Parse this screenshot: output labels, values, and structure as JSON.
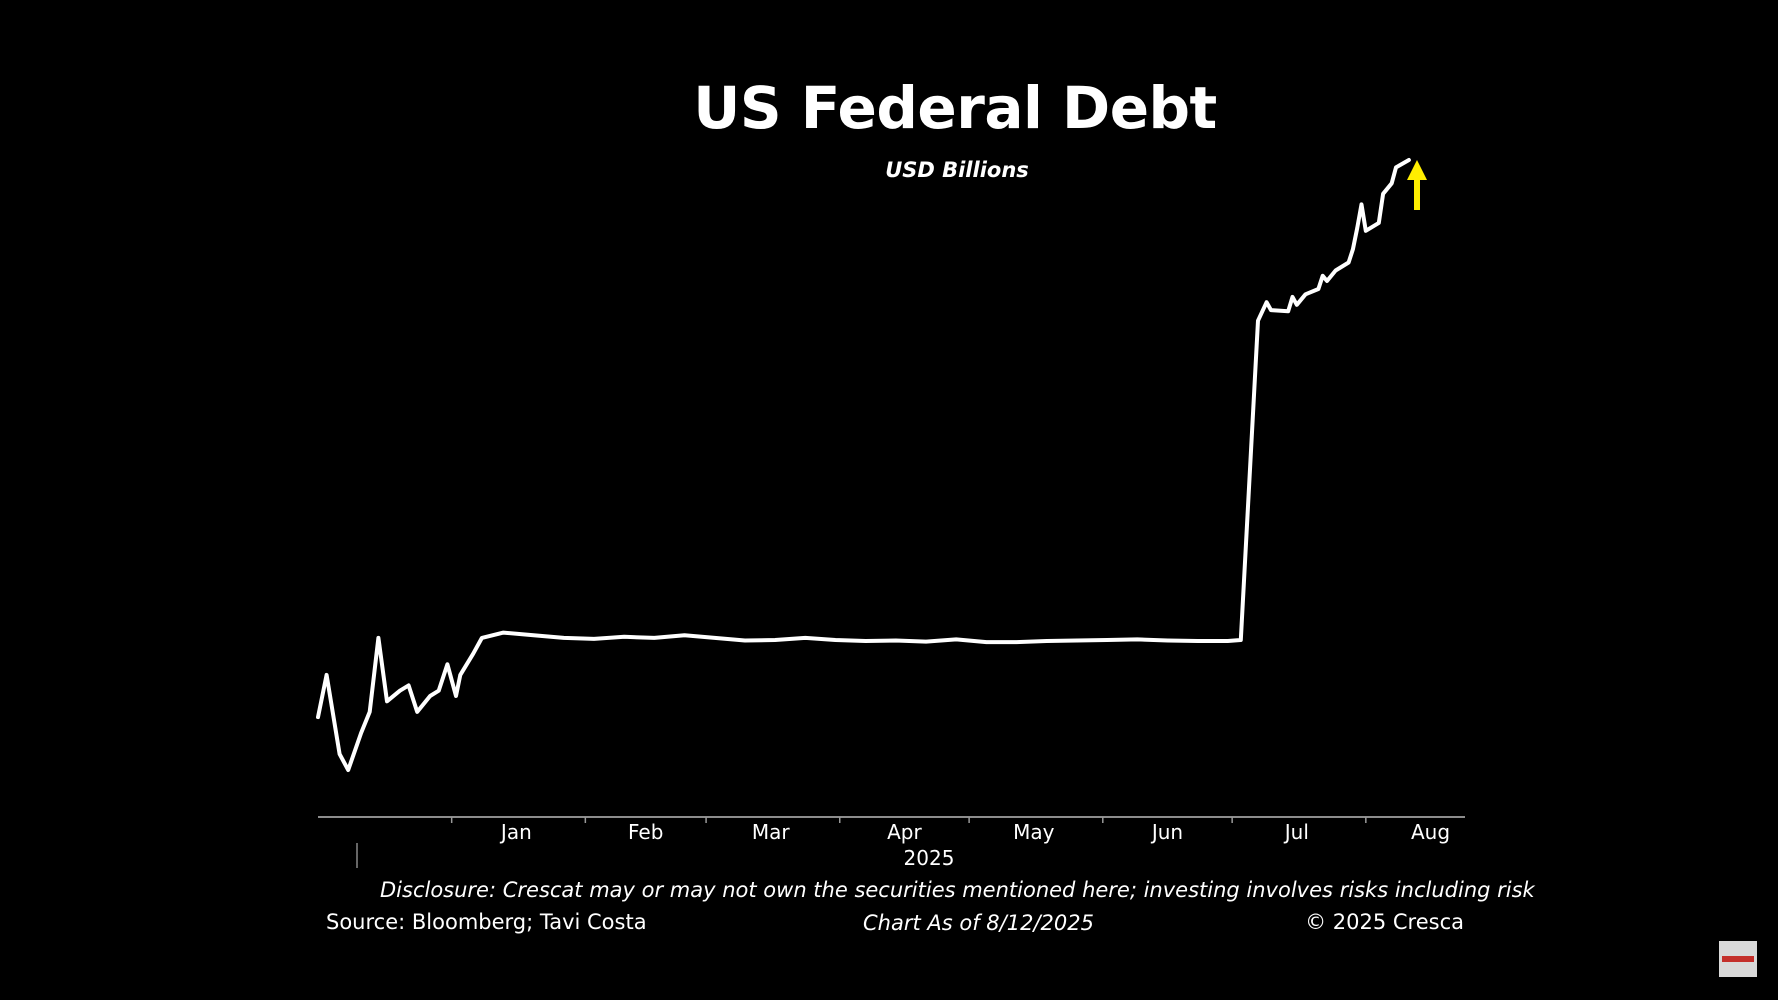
{
  "chart_data": {
    "type": "line",
    "title": "US Federal Debt",
    "subtitle": "USD Billions",
    "x_tick_labels": [
      "Jan",
      "Feb",
      "Mar",
      "Apr",
      "May",
      "Jun",
      "Jul",
      "Aug"
    ],
    "year_label": "2025",
    "xlim": [
      "2024-12-01",
      "2025-08-24"
    ],
    "grid": false,
    "line_color": "#ffffff",
    "arrow_color": "#ffee00",
    "series": [
      {
        "values_note": "",
        "points": [
          [
            "2024-12-01",
            36150
          ],
          [
            "2024-12-03",
            36230
          ],
          [
            "2024-12-06",
            36080
          ],
          [
            "2024-12-08",
            36050
          ],
          [
            "2024-12-11",
            36120
          ],
          [
            "2024-12-13",
            36160
          ],
          [
            "2024-12-15",
            36300
          ],
          [
            "2024-12-17",
            36180
          ],
          [
            "2024-12-20",
            36200
          ],
          [
            "2024-12-22",
            36210
          ],
          [
            "2024-12-24",
            36160
          ],
          [
            "2024-12-27",
            36190
          ],
          [
            "2024-12-29",
            36200
          ],
          [
            "2024-12-31",
            36250
          ],
          [
            "2025-01-02",
            36190
          ],
          [
            "2025-01-03",
            36230
          ],
          [
            "2025-01-06",
            36270
          ],
          [
            "2025-01-08",
            36300
          ],
          [
            "2025-01-13",
            36310
          ],
          [
            "2025-01-20",
            36305
          ],
          [
            "2025-01-27",
            36300
          ],
          [
            "2025-02-03",
            36298
          ],
          [
            "2025-02-10",
            36302
          ],
          [
            "2025-02-17",
            36300
          ],
          [
            "2025-02-24",
            36305
          ],
          [
            "2025-03-03",
            36300
          ],
          [
            "2025-03-10",
            36295
          ],
          [
            "2025-03-17",
            36296
          ],
          [
            "2025-03-24",
            36300
          ],
          [
            "2025-03-31",
            36296
          ],
          [
            "2025-04-07",
            36294
          ],
          [
            "2025-04-14",
            36295
          ],
          [
            "2025-04-21",
            36293
          ],
          [
            "2025-04-28",
            36297
          ],
          [
            "2025-05-05",
            36292
          ],
          [
            "2025-05-12",
            36292
          ],
          [
            "2025-05-19",
            36294
          ],
          [
            "2025-05-26",
            36295
          ],
          [
            "2025-06-02",
            36296
          ],
          [
            "2025-06-09",
            36297
          ],
          [
            "2025-06-16",
            36295
          ],
          [
            "2025-06-23",
            36294
          ],
          [
            "2025-06-30",
            36294
          ],
          [
            "2025-07-03",
            36296
          ],
          [
            "2025-07-07",
            36900
          ],
          [
            "2025-07-09",
            36935
          ],
          [
            "2025-07-10",
            36920
          ],
          [
            "2025-07-14",
            36918
          ],
          [
            "2025-07-15",
            36945
          ],
          [
            "2025-07-16",
            36930
          ],
          [
            "2025-07-18",
            36950
          ],
          [
            "2025-07-21",
            36960
          ],
          [
            "2025-07-22",
            36985
          ],
          [
            "2025-07-23",
            36975
          ],
          [
            "2025-07-25",
            36995
          ],
          [
            "2025-07-28",
            37010
          ],
          [
            "2025-07-29",
            37035
          ],
          [
            "2025-07-30",
            37075
          ],
          [
            "2025-07-31",
            37120
          ],
          [
            "2025-08-01",
            37070
          ],
          [
            "2025-08-04",
            37085
          ],
          [
            "2025-08-05",
            37140
          ],
          [
            "2025-08-07",
            37160
          ],
          [
            "2025-08-08",
            37190
          ],
          [
            "2025-08-11",
            37204
          ]
        ]
      }
    ]
  },
  "footer": {
    "disclosure": "Disclosure: Crescat may or may not own the securities mentioned here; investing involves risks including risk",
    "source": "Source: Bloomberg; Tavi Costa",
    "as_of": "Chart As of 8/12/2025",
    "copyright": "© 2025 Cresca"
  }
}
